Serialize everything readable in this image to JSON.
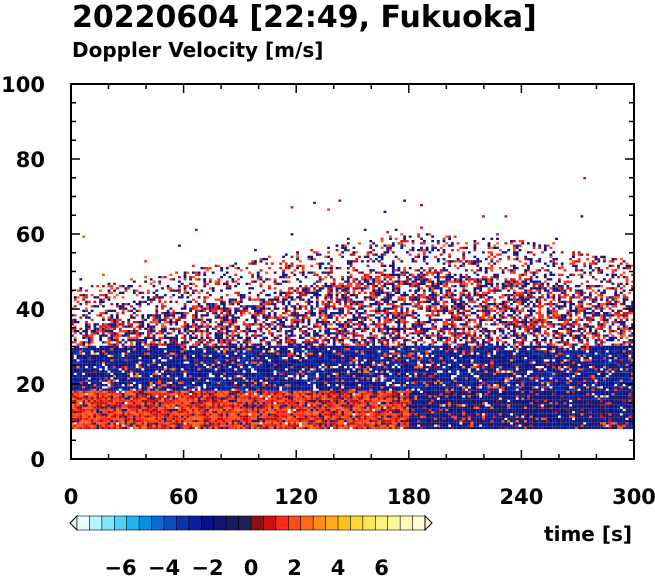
{
  "chart_data": {
    "type": "heatmap",
    "title": "20220604 [22:49, Fukuoka]",
    "subtitle": "Doppler Velocity [m/s]",
    "xlabel": "time [s]",
    "ylabel": "",
    "xlim": [
      0,
      300
    ],
    "ylim": [
      0,
      100
    ],
    "x_ticks": [
      0,
      60,
      120,
      180,
      240,
      300
    ],
    "y_ticks": [
      0,
      20,
      40,
      60,
      80,
      100
    ],
    "grid": false,
    "colorbar": {
      "range": [
        -8,
        8
      ],
      "tick_values": [
        -6,
        -4,
        -2,
        0,
        2,
        4,
        6
      ],
      "tick_labels": [
        "−6",
        "−4",
        "−2",
        "0",
        "2",
        "4",
        "6"
      ],
      "colors": [
        "#e6ffff",
        "#b3f5ff",
        "#7fe6ff",
        "#4dd2f5",
        "#1ab4ee",
        "#0a8fe0",
        "#0a6cd0",
        "#0a4ec0",
        "#0a33b0",
        "#0a1fa0",
        "#0a0f8c",
        "#141478",
        "#1a1a66",
        "#202050",
        "#8c1010",
        "#cc1010",
        "#ff2a1a",
        "#ff4d1a",
        "#ff6a1a",
        "#ff8c1a",
        "#ffaa1a",
        "#ffc21a",
        "#ffd63a",
        "#ffe65a",
        "#fff07a",
        "#fff59a",
        "#fff8b8",
        "#fffbd2"
      ]
    },
    "echo": {
      "time_range_s": [
        0,
        300
      ],
      "height_bottom": 8,
      "top_height_by_minute": [
        45,
        50,
        55,
        60,
        58,
        52
      ],
      "max_height": 78,
      "regions": [
        {
          "time_s": [
            0,
            180
          ],
          "height": [
            8,
            18
          ],
          "dominant_velocity": 1.5
        },
        {
          "time_s": [
            180,
            300
          ],
          "height": [
            8,
            18
          ],
          "dominant_velocity": -1.5
        },
        {
          "time_s": [
            0,
            300
          ],
          "height": [
            18,
            30
          ],
          "dominant_velocity": -2
        },
        {
          "time_s": [
            0,
            300
          ],
          "height": [
            30,
            60
          ],
          "dominant_velocity": 0.5
        }
      ]
    }
  }
}
